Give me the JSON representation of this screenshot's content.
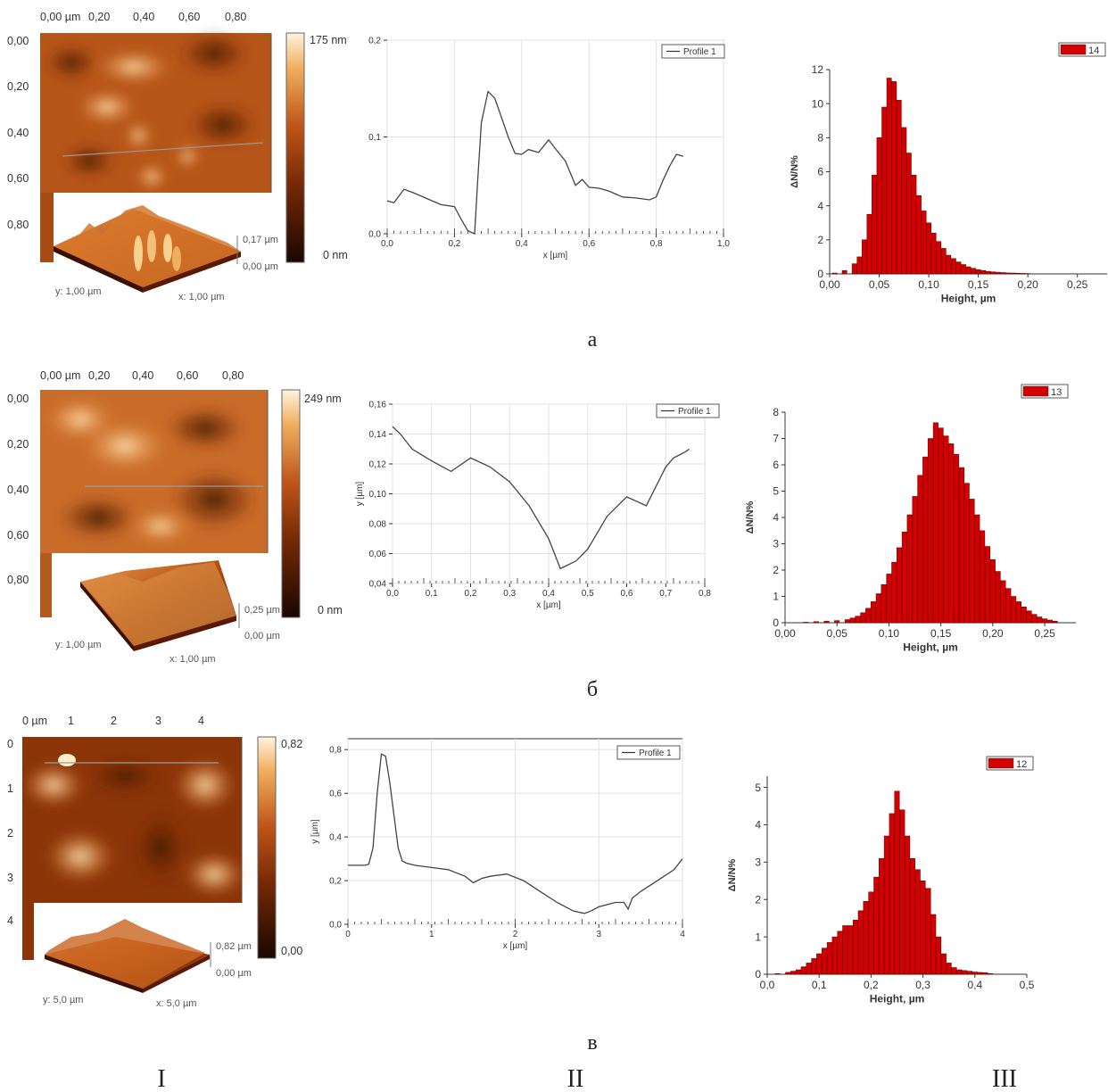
{
  "colors": {
    "hist_fill": "#d40000",
    "hist_edge": "#5a0000",
    "profile_line": "#444444",
    "afm_dark": "#1a0700",
    "afm_mid": "#a8430c",
    "afm_light": "#fff4e0"
  },
  "figure": {
    "column_labels": [
      "I",
      "II",
      "III"
    ],
    "rows": [
      {
        "label": "а",
        "afm": {
          "x_ticks": [
            "0,00 µm",
            "0,20",
            "0,40",
            "0,60",
            "0,80"
          ],
          "y_ticks": [
            "0,00",
            "0,20",
            "0,40",
            "0,60",
            "0,80"
          ],
          "scale_max": "175 nm",
          "scale_min": "0 nm",
          "z_top": "0,17 µm",
          "z_bottom": "0,00 µm",
          "y_label": "y: 1,00 µm",
          "x_label": "x: 1,00 µm"
        },
        "legend": "Profile 1",
        "hist_legend": "14"
      },
      {
        "label": "б",
        "afm": {
          "x_ticks": [
            "0,00 µm",
            "0,20",
            "0,40",
            "0,60",
            "0,80"
          ],
          "y_ticks": [
            "0,00",
            "0,20",
            "0,40",
            "0,60",
            "0,80"
          ],
          "scale_max": "249 nm",
          "scale_min": "0 nm",
          "z_top": "0,25 µm",
          "z_bottom": "0,00 µm",
          "y_label": "y: 1,00 µm",
          "x_label": "x: 1,00 µm"
        },
        "legend": "Profile 1",
        "hist_legend": "13"
      },
      {
        "label": "в",
        "afm": {
          "x_ticks": [
            "0 µm",
            "1",
            "2",
            "3",
            "4"
          ],
          "y_ticks": [
            "0",
            "1",
            "2",
            "3",
            "4"
          ],
          "scale_max": "0,82",
          "scale_min": "0,00",
          "z_top": "0,82 µm",
          "z_bottom": "0,00 µm",
          "y_label": "y: 5,0 µm",
          "x_label": "x: 5,0 µm"
        },
        "legend": "Profile 1",
        "hist_legend": "12"
      }
    ]
  },
  "chart_data": [
    {
      "type": "line",
      "series": [
        {
          "name": "Profile 1",
          "x": [
            0,
            0.02,
            0.05,
            0.08,
            0.12,
            0.16,
            0.2,
            0.22,
            0.24,
            0.26,
            0.27,
            0.28,
            0.3,
            0.32,
            0.34,
            0.36,
            0.38,
            0.4,
            0.42,
            0.45,
            0.48,
            0.5,
            0.53,
            0.56,
            0.58,
            0.6,
            0.63,
            0.66,
            0.7,
            0.74,
            0.78,
            0.8,
            0.82,
            0.84,
            0.86,
            0.88
          ],
          "y": [
            0.034,
            0.032,
            0.046,
            0.042,
            0.036,
            0.03,
            0.028,
            0.015,
            0.003,
            0.0,
            0.06,
            0.115,
            0.147,
            0.14,
            0.12,
            0.1,
            0.083,
            0.082,
            0.087,
            0.084,
            0.097,
            0.088,
            0.075,
            0.05,
            0.056,
            0.048,
            0.047,
            0.044,
            0.038,
            0.037,
            0.035,
            0.038,
            0.055,
            0.07,
            0.082,
            0.08
          ]
        }
      ],
      "xlabel": "x [µm]",
      "ylabel": "",
      "xlim": [
        0,
        1.0
      ],
      "ylim": [
        0,
        0.2
      ],
      "x_ticks": [
        "0,0",
        "0,2",
        "0,4",
        "0,6",
        "0,8",
        "1,0"
      ],
      "y_ticks": [
        "0,0",
        "0,1",
        "0,2"
      ]
    },
    {
      "type": "bar",
      "series": [
        {
          "name": "14",
          "x": [
            0.005,
            0.015,
            0.025,
            0.03,
            0.035,
            0.04,
            0.045,
            0.05,
            0.055,
            0.06,
            0.065,
            0.07,
            0.075,
            0.08,
            0.085,
            0.09,
            0.095,
            0.1,
            0.105,
            0.11,
            0.115,
            0.12,
            0.125,
            0.13,
            0.135,
            0.14,
            0.145,
            0.15,
            0.155,
            0.16,
            0.165,
            0.17,
            0.175,
            0.18,
            0.185,
            0.19,
            0.195,
            0.2
          ],
          "values": [
            0.05,
            0.2,
            0.6,
            1.0,
            2.0,
            3.5,
            5.8,
            8.0,
            9.8,
            11.5,
            11.3,
            10.2,
            8.6,
            7.1,
            5.8,
            4.6,
            3.7,
            3.0,
            2.4,
            1.9,
            1.5,
            1.1,
            0.9,
            0.7,
            0.55,
            0.42,
            0.33,
            0.25,
            0.2,
            0.15,
            0.12,
            0.1,
            0.08,
            0.06,
            0.05,
            0.04,
            0.03,
            0.02
          ]
        }
      ],
      "xlabel": "Height, µm",
      "ylabel": "ΔN/N%",
      "xlim": [
        0,
        0.28
      ],
      "ylim": [
        0,
        12
      ],
      "x_ticks": [
        "0,00",
        "0,05",
        "0,10",
        "0,15",
        "0,20",
        "0,25"
      ],
      "y_ticks": [
        "0",
        "2",
        "4",
        "6",
        "8",
        "10",
        "12"
      ],
      "legend_position": "top-right"
    },
    {
      "type": "line",
      "series": [
        {
          "name": "Profile 1",
          "x": [
            0,
            0.02,
            0.05,
            0.1,
            0.15,
            0.2,
            0.25,
            0.3,
            0.35,
            0.4,
            0.43,
            0.47,
            0.5,
            0.55,
            0.6,
            0.65,
            0.7,
            0.72,
            0.75,
            0.76
          ],
          "y": [
            0.145,
            0.14,
            0.13,
            0.122,
            0.115,
            0.124,
            0.118,
            0.108,
            0.092,
            0.07,
            0.05,
            0.055,
            0.063,
            0.085,
            0.098,
            0.092,
            0.118,
            0.124,
            0.128,
            0.13
          ]
        }
      ],
      "xlabel": "x [µm]",
      "ylabel": "y [µm]",
      "xlim": [
        0,
        0.8
      ],
      "ylim": [
        0.04,
        0.16
      ],
      "x_ticks": [
        "0,0",
        "0,1",
        "0,2",
        "0,3",
        "0,4",
        "0,5",
        "0,6",
        "0,7",
        "0,8"
      ],
      "y_ticks": [
        "0,04",
        "0,06",
        "0,08",
        "0,10",
        "0,12",
        "0,14",
        "0,16"
      ]
    },
    {
      "type": "bar",
      "series": [
        {
          "name": "13",
          "x": [
            0.02,
            0.03,
            0.04,
            0.05,
            0.06,
            0.065,
            0.07,
            0.075,
            0.08,
            0.085,
            0.09,
            0.095,
            0.1,
            0.105,
            0.11,
            0.115,
            0.12,
            0.125,
            0.13,
            0.135,
            0.14,
            0.145,
            0.15,
            0.155,
            0.16,
            0.165,
            0.17,
            0.175,
            0.18,
            0.185,
            0.19,
            0.195,
            0.2,
            0.205,
            0.21,
            0.215,
            0.22,
            0.225,
            0.23,
            0.235,
            0.24,
            0.245,
            0.25,
            0.255,
            0.26
          ],
          "values": [
            0.02,
            0.04,
            0.06,
            0.08,
            0.12,
            0.18,
            0.25,
            0.38,
            0.55,
            0.8,
            1.1,
            1.45,
            1.85,
            2.3,
            2.85,
            3.45,
            4.1,
            4.8,
            5.6,
            6.3,
            7.0,
            7.6,
            7.4,
            7.1,
            6.8,
            6.4,
            5.9,
            5.3,
            4.7,
            4.1,
            3.5,
            2.9,
            2.4,
            1.95,
            1.6,
            1.3,
            1.0,
            0.8,
            0.6,
            0.45,
            0.32,
            0.22,
            0.15,
            0.1,
            0.06
          ]
        }
      ],
      "xlabel": "Height, µm",
      "ylabel": "ΔN/N%",
      "xlim": [
        0,
        0.28
      ],
      "ylim": [
        0,
        8
      ],
      "x_ticks": [
        "0,00",
        "0,05",
        "0,10",
        "0,15",
        "0,20",
        "0,25"
      ],
      "y_ticks": [
        "0",
        "1",
        "2",
        "3",
        "4",
        "5",
        "6",
        "7",
        "8"
      ],
      "legend_position": "top-right"
    },
    {
      "type": "line",
      "series": [
        {
          "name": "Profile 1",
          "x": [
            0,
            0.1,
            0.2,
            0.25,
            0.3,
            0.35,
            0.4,
            0.45,
            0.5,
            0.55,
            0.6,
            0.65,
            0.7,
            0.8,
            1.0,
            1.2,
            1.4,
            1.5,
            1.6,
            1.7,
            1.9,
            2.1,
            2.3,
            2.5,
            2.7,
            2.83,
            2.9,
            3.0,
            3.2,
            3.3,
            3.35,
            3.4,
            3.5,
            3.7,
            3.9,
            4.0
          ],
          "y": [
            0.27,
            0.27,
            0.27,
            0.275,
            0.35,
            0.6,
            0.78,
            0.77,
            0.65,
            0.5,
            0.35,
            0.29,
            0.28,
            0.27,
            0.26,
            0.25,
            0.22,
            0.19,
            0.21,
            0.22,
            0.23,
            0.2,
            0.15,
            0.1,
            0.06,
            0.05,
            0.06,
            0.08,
            0.1,
            0.1,
            0.07,
            0.12,
            0.15,
            0.2,
            0.25,
            0.3
          ]
        }
      ],
      "xlabel": "x [µm]",
      "ylabel": "y [µm]",
      "xlim": [
        0,
        4
      ],
      "ylim": [
        0,
        0.85
      ],
      "x_ticks": [
        "0",
        "1",
        "2",
        "3",
        "4"
      ],
      "y_ticks": [
        "0,0",
        "0,2",
        "0,4",
        "0,6",
        "0,8"
      ]
    },
    {
      "type": "bar",
      "series": [
        {
          "name": "12",
          "x": [
            0.02,
            0.04,
            0.05,
            0.06,
            0.07,
            0.08,
            0.09,
            0.1,
            0.11,
            0.12,
            0.13,
            0.14,
            0.15,
            0.16,
            0.17,
            0.18,
            0.19,
            0.2,
            0.21,
            0.22,
            0.23,
            0.24,
            0.25,
            0.26,
            0.27,
            0.28,
            0.29,
            0.3,
            0.31,
            0.32,
            0.33,
            0.34,
            0.35,
            0.36,
            0.37,
            0.38,
            0.39,
            0.4,
            0.41,
            0.42,
            0.43
          ],
          "values": [
            0.02,
            0.05,
            0.08,
            0.12,
            0.2,
            0.3,
            0.42,
            0.55,
            0.7,
            0.85,
            1.0,
            1.15,
            1.3,
            1.3,
            1.45,
            1.7,
            1.95,
            2.2,
            2.6,
            3.1,
            3.7,
            4.3,
            4.9,
            4.4,
            3.7,
            3.1,
            2.8,
            2.5,
            2.3,
            1.6,
            1.0,
            0.55,
            0.3,
            0.18,
            0.12,
            0.1,
            0.08,
            0.06,
            0.05,
            0.04,
            0.02
          ]
        }
      ],
      "xlabel": "Height, µm",
      "ylabel": "ΔN/N%",
      "xlim": [
        0,
        0.5
      ],
      "ylim": [
        0,
        5.3
      ],
      "x_ticks": [
        "0,0",
        "0,1",
        "0,2",
        "0,3",
        "0,4",
        "0,5"
      ],
      "y_ticks": [
        "0",
        "1",
        "2",
        "3",
        "4",
        "5"
      ],
      "legend_position": "top-right"
    }
  ]
}
